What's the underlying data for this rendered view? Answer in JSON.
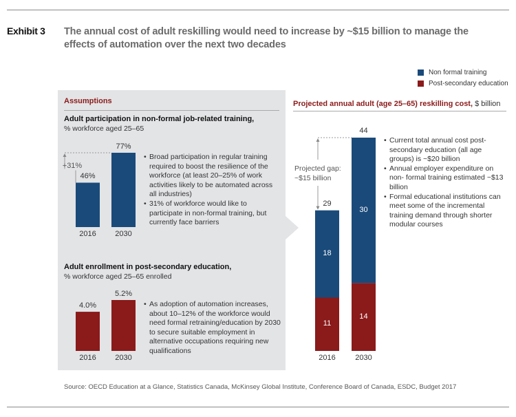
{
  "header": {
    "exhibit_label": "Exhibit 3",
    "title": "The annual cost of adult reskilling would need to increase by ~$15 billion to manage the effects of automation over the next two decades"
  },
  "legend": {
    "items": [
      {
        "label": "Non formal training",
        "color": "#1a4a7a"
      },
      {
        "label": "Post-secondary education",
        "color": "#8b1a1a"
      }
    ]
  },
  "colors": {
    "blue": "#1a4a7a",
    "red": "#8b1a1a",
    "panel": "#e3e4e6",
    "section_head": "#8b1a1a"
  },
  "assumptions": {
    "heading": "Assumptions",
    "participation": {
      "title": "Adult participation in non-formal job-related training,",
      "unit": "% workforce aged 25–65",
      "change_label": "+31%",
      "bullets": [
        "Broad participation in regular training required to boost the resilience of the workforce (at least 20–25% of work activities likely to be automated across all industries)",
        "31% of workforce would like to participate in non-formal training, but currently face barriers"
      ]
    },
    "enrollment": {
      "title": "Adult enrollment in post-secondary education,",
      "unit": "% workforce aged 25–65 enrolled",
      "bullets": [
        "As adoption of automation increases, about 10–12% of the workforce would need formal retraining/education by 2030 to secure suitable employment in alternative occupations requiring new qualifications"
      ]
    }
  },
  "projection": {
    "heading": "Projected annual adult (age 25–65) reskilling cost,",
    "heading_unit": " $ billion",
    "gap_label_line1": "Projected gap:",
    "gap_label_line2": "~$15 billion",
    "bullets": [
      "Current total annual cost post-secondary education (all age groups) is ~$20 billion",
      "Annual employer expenditure on non- formal training estimated ~$13 billion",
      "Formal educational institutions can meet some of the incremental training demand through shorter modular courses"
    ]
  },
  "source": "Source: OECD Education at a Glance, Statistics Canada, McKinsey Global Institute, Conference Board of Canada, ESDC, Budget 2017",
  "chart_data": [
    {
      "type": "bar",
      "title": "Adult participation in non-formal job-related training, % workforce aged 25–65",
      "categories": [
        "2016",
        "2030"
      ],
      "values": [
        46,
        77
      ],
      "value_labels": [
        "46%",
        "77%"
      ],
      "unit": "%",
      "annotation": "+31%",
      "color": "#1a4a7a"
    },
    {
      "type": "bar",
      "title": "Adult enrollment in post-secondary education, % workforce aged 25–65 enrolled",
      "categories": [
        "2016",
        "2030"
      ],
      "values": [
        4.0,
        5.2
      ],
      "value_labels": [
        "4.0%",
        "5.2%"
      ],
      "unit": "%",
      "color": "#8b1a1a"
    },
    {
      "type": "bar",
      "stacked": true,
      "title": "Projected annual adult (age 25–65) reskilling cost, $ billion",
      "categories": [
        "2016",
        "2030"
      ],
      "series": [
        {
          "name": "Post-secondary education",
          "values": [
            11,
            14
          ],
          "color": "#8b1a1a"
        },
        {
          "name": "Non formal training",
          "values": [
            18,
            30
          ],
          "color": "#1a4a7a"
        }
      ],
      "totals": [
        29,
        44
      ],
      "annotation": "Projected gap: ~$15 billion",
      "legend": "top-right"
    }
  ]
}
